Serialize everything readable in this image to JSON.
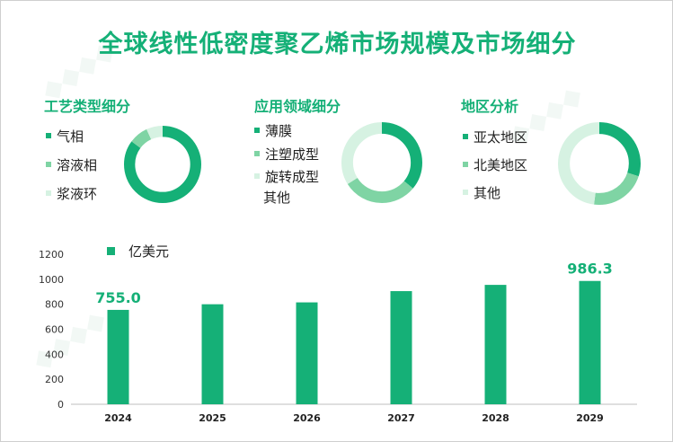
{
  "title": "全球线性低密度聚乙烯市场规模及市场细分",
  "colors": {
    "dark": "#15b077",
    "mid": "#7fd4a4",
    "light": "#d6f2e2",
    "title": "#15b077"
  },
  "sections": [
    {
      "title": "工艺类型细分",
      "legend": [
        "气相",
        "溶液相",
        "浆液环"
      ],
      "shares": [
        0.85,
        0.08,
        0.07
      ]
    },
    {
      "title": "应用领域细分",
      "legend": [
        "薄膜",
        "注塑成型",
        "旋转成型",
        "其他"
      ],
      "shares": [
        0.36,
        0.3,
        0.34,
        0.0
      ]
    },
    {
      "title": "地区分析",
      "legend": [
        "亚太地区",
        "北美地区",
        "其他"
      ],
      "shares": [
        0.3,
        0.22,
        0.48
      ]
    }
  ],
  "chart_data": {
    "type": "bar",
    "series": [
      {
        "name": "亿美元",
        "values": [
          755.0,
          800,
          815,
          905,
          955,
          986.3
        ]
      }
    ],
    "categories": [
      "2024",
      "2025",
      "2026",
      "2027",
      "2028",
      "2029"
    ],
    "data_labels": [
      {
        "index": 0,
        "text": "755.0"
      },
      {
        "index": 5,
        "text": "986.3"
      }
    ],
    "y_ticks": [
      "0",
      "200",
      "400",
      "600",
      "800",
      "1000",
      "1200"
    ],
    "ylim": [
      0,
      1200
    ],
    "grid": false,
    "legend_position": "top-left"
  }
}
